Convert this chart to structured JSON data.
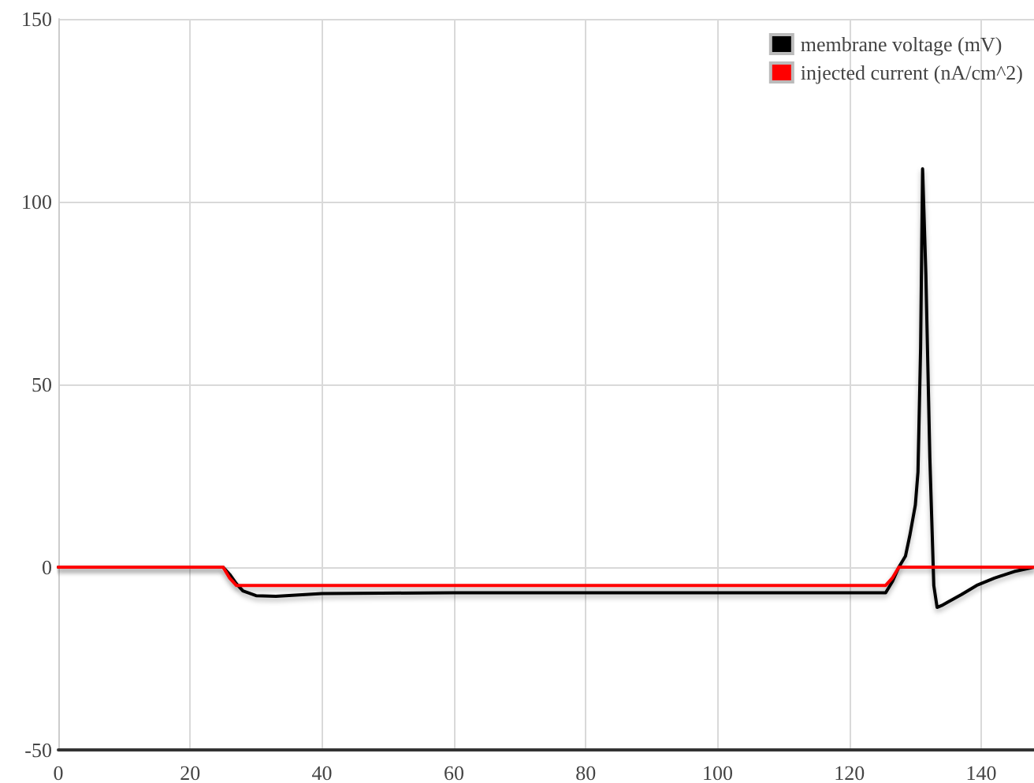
{
  "chart_data": {
    "type": "line",
    "xlim": [
      0,
      148
    ],
    "xticks": [
      0,
      20,
      40,
      60,
      80,
      100,
      120,
      140
    ],
    "ylim": [
      -50,
      150
    ],
    "yticks": [
      -50,
      0,
      50,
      100,
      150
    ],
    "grid": true,
    "legend": "top right",
    "marker": "none",
    "line_style": "solid",
    "series": [
      {
        "name": "membrane voltage (mV)",
        "color": "#000000",
        "x": [
          0,
          25,
          26,
          27,
          28,
          30,
          33,
          40,
          60,
          80,
          100,
          120,
          125.5,
          126.5,
          127.5,
          128.5,
          129.2,
          130,
          130.4,
          130.8,
          131.1,
          131.6,
          132.2,
          132.8,
          133.3,
          134,
          135,
          137,
          139.3,
          142,
          145,
          148
        ],
        "values": [
          0,
          0,
          -2,
          -4.5,
          -6.5,
          -7.8,
          -8,
          -7.2,
          -7,
          -7,
          -7,
          -7,
          -7,
          -4,
          0,
          3,
          9,
          17,
          26,
          60,
          109,
          80,
          30,
          -5,
          -11,
          -10.5,
          -9.5,
          -7.5,
          -5,
          -3,
          -1.2,
          0
        ]
      },
      {
        "name": "injected current (nA/cm^2)",
        "color": "#ff0000",
        "x": [
          0,
          25,
          26,
          27,
          40,
          80,
          125.5,
          126.5,
          127.5,
          140,
          148
        ],
        "values": [
          0,
          0,
          -3,
          -5,
          -5,
          -5,
          -5,
          -3,
          0,
          0,
          0
        ]
      }
    ]
  }
}
